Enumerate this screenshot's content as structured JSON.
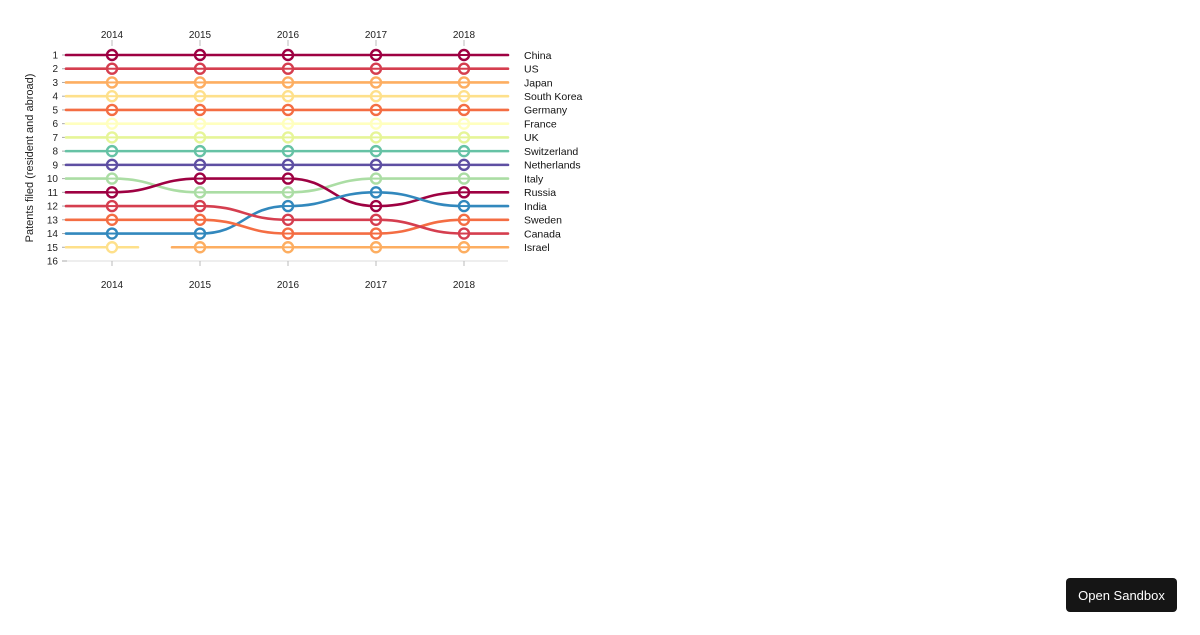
{
  "chart_data": {
    "type": "line",
    "subtype": "bump",
    "x": [
      "2014",
      "2015",
      "2016",
      "2017",
      "2018"
    ],
    "ylabel": "Patents filed (resident and abroad)",
    "y_ticks": [
      "1",
      "2",
      "3",
      "4",
      "5",
      "6",
      "7",
      "8",
      "9",
      "10",
      "11",
      "12",
      "13",
      "14",
      "15",
      "16"
    ],
    "y_inverted": true,
    "grid": false,
    "series": [
      {
        "name": "China",
        "color": "#9e0142",
        "ranks": [
          1,
          1,
          1,
          1,
          1
        ]
      },
      {
        "name": "US",
        "color": "#d53e4f",
        "ranks": [
          2,
          2,
          2,
          2,
          2
        ]
      },
      {
        "name": "Japan",
        "color": "#fdae61",
        "ranks": [
          3,
          3,
          3,
          3,
          3
        ]
      },
      {
        "name": "South Korea",
        "color": "#fee08b",
        "ranks": [
          4,
          4,
          4,
          4,
          4
        ]
      },
      {
        "name": "Germany",
        "color": "#f46d43",
        "ranks": [
          5,
          5,
          5,
          5,
          5
        ]
      },
      {
        "name": "France",
        "color": "#ffffbf",
        "ranks": [
          6,
          6,
          6,
          6,
          6
        ]
      },
      {
        "name": "UK",
        "color": "#e6f598",
        "ranks": [
          7,
          7,
          7,
          7,
          7
        ]
      },
      {
        "name": "Switzerland",
        "color": "#66c2a5",
        "ranks": [
          8,
          8,
          8,
          8,
          8
        ]
      },
      {
        "name": "Netherlands",
        "color": "#5e4fa2",
        "ranks": [
          9,
          9,
          9,
          9,
          9
        ]
      },
      {
        "name": "Italy",
        "color": "#abdda4",
        "ranks": [
          10,
          11,
          11,
          10,
          10
        ]
      },
      {
        "name": "Russia",
        "color": "#9e0142",
        "ranks": [
          11,
          10,
          10,
          12,
          11
        ]
      },
      {
        "name": "India",
        "color": "#3288bd",
        "ranks": [
          14,
          14,
          12,
          11,
          12
        ]
      },
      {
        "name": "Sweden",
        "color": "#f46d43",
        "ranks": [
          13,
          13,
          14,
          14,
          13
        ]
      },
      {
        "name": "Canada",
        "color": "#d53e4f",
        "ranks": [
          12,
          12,
          13,
          13,
          14
        ]
      },
      {
        "name": "Israel",
        "color": "#fdae61",
        "ranks": [
          15,
          15,
          15,
          15,
          15
        ]
      },
      {
        "name": "",
        "color": "#fee08b",
        "ranks": [
          15,
          null,
          null,
          null,
          null
        ]
      }
    ]
  },
  "ui": {
    "open_sandbox_label": "Open Sandbox"
  }
}
